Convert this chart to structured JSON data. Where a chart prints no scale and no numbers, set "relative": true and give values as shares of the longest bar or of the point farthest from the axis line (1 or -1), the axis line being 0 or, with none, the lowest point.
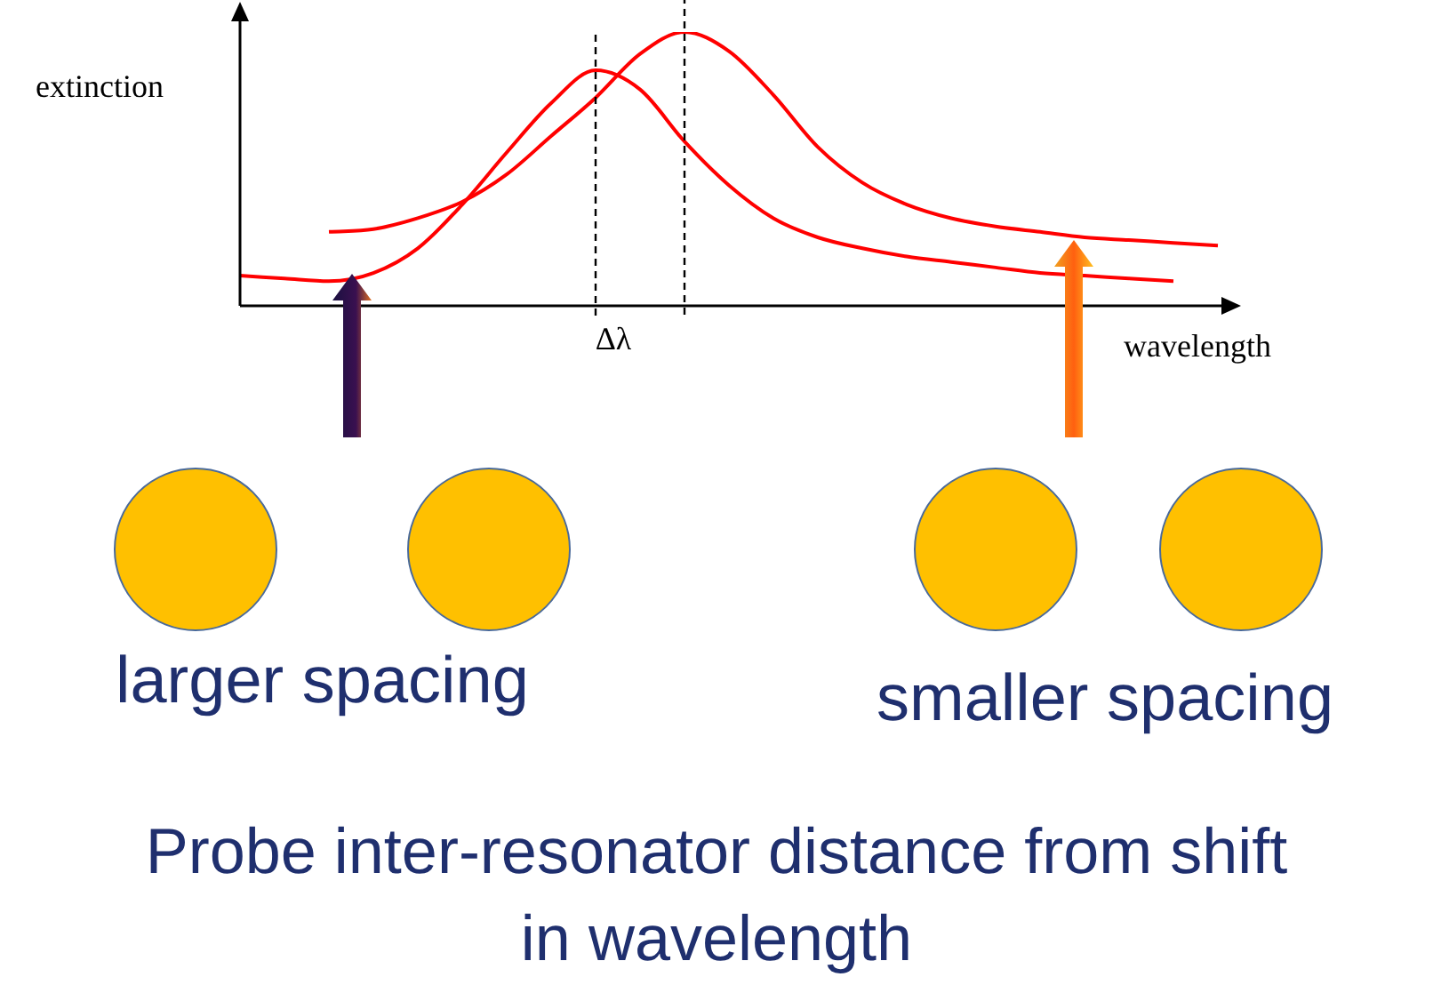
{
  "chart_data": {
    "type": "line",
    "xlabel": "wavelength",
    "ylabel": "extinction",
    "relative": true,
    "marker": "none",
    "line_style": "solid",
    "categories": [
      null,
      null,
      null,
      null,
      null,
      null,
      null,
      null,
      null,
      null,
      null,
      null,
      null,
      null,
      null,
      null,
      null,
      null,
      null,
      null,
      null,
      null,
      null
    ],
    "series": [
      {
        "color": "#ff0000",
        "values": [
          0.11,
          0.1,
          0.09,
          0.12,
          0.21,
          0.37,
          0.56,
          0.74,
          0.86,
          0.79,
          0.6,
          0.44,
          0.32,
          0.25,
          0.21,
          0.18,
          0.16,
          0.14,
          0.12,
          0.11,
          0.1,
          0.09,
          null
        ]
      },
      {
        "color": "#ff0000",
        "values": [
          null,
          null,
          0.27,
          0.28,
          0.32,
          0.38,
          0.48,
          0.62,
          0.76,
          0.92,
          1,
          0.93,
          0.77,
          0.58,
          0.45,
          0.37,
          0.32,
          0.29,
          0.27,
          0.25,
          0.24,
          0.23,
          0.22
        ]
      }
    ],
    "annotations": [
      "Δλ",
      "larger spacing",
      "smaller spacing",
      "Probe inter-resonator distance from shift in wavelength"
    ]
  }
}
